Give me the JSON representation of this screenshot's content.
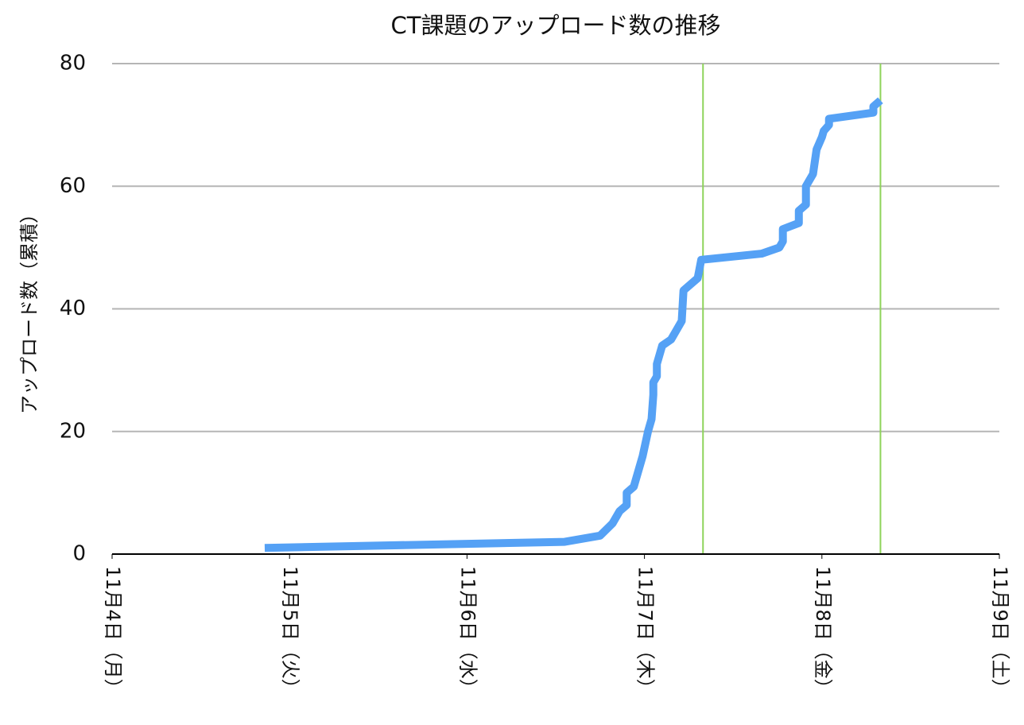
{
  "chart_data": {
    "type": "line",
    "title": "CT課題のアップロード数の推移",
    "y_label": "アップロード数（累積）",
    "x": [
      0.86,
      2.55,
      2.75,
      2.82,
      2.86,
      2.9,
      2.9,
      2.94,
      2.98,
      2.99,
      3.02,
      3.03,
      3.04,
      3.05,
      3.05,
      3.07,
      3.07,
      3.1,
      3.15,
      3.17,
      3.21,
      3.22,
      3.3,
      3.32,
      3.66,
      3.76,
      3.78,
      3.78,
      3.87,
      3.87,
      3.91,
      3.91,
      3.95,
      3.97,
      4.0,
      4.01,
      4.04,
      4.04,
      4.29,
      4.29,
      4.33
    ],
    "series": [
      {
        "color": "#55a1f5",
        "values": [
          1,
          2,
          3,
          5,
          7,
          8,
          10,
          11,
          15,
          16,
          20,
          21,
          22,
          26,
          28,
          29,
          31,
          34,
          35,
          36,
          38,
          43,
          45,
          48,
          49,
          50,
          51,
          53,
          54,
          56,
          57,
          60,
          62,
          66,
          68,
          69,
          70,
          71,
          72,
          73,
          74
        ]
      }
    ],
    "xlim": [
      0,
      5
    ],
    "xticks": [
      {
        "value": 0,
        "label": "11月4日（月）"
      },
      {
        "value": 1,
        "label": "11月5日（火）"
      },
      {
        "value": 2,
        "label": "11月6日（水）"
      },
      {
        "value": 3,
        "label": "11月7日（木）"
      },
      {
        "value": 4,
        "label": "11月8日（金）"
      },
      {
        "value": 5,
        "label": "11月9日（土）"
      }
    ],
    "ylim": [
      0,
      80
    ],
    "yticks": [
      0,
      20,
      40,
      60,
      80
    ],
    "grid": true,
    "vlines": [
      3.33,
      4.33
    ],
    "vline_color": "#8ed35a"
  }
}
